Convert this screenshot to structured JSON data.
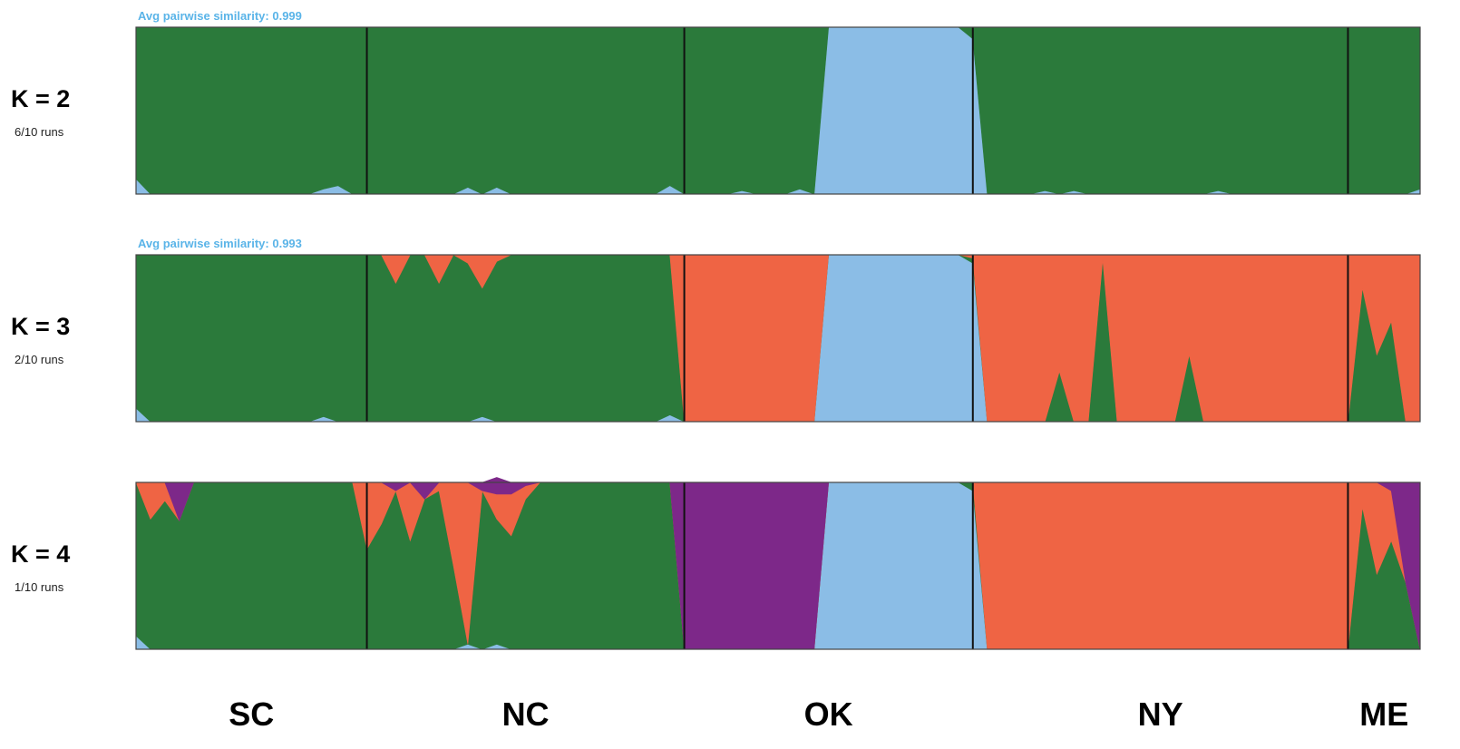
{
  "colors": {
    "green": "#2b7a3b",
    "blue": "#8bbde6",
    "orange": "#ef6444",
    "purple": "#7d2889",
    "similarity_text": "#5ab4e8",
    "frame": "#444444",
    "divider": "#111111"
  },
  "chart_data": {
    "type": "area",
    "description_kind": "stacked admixture proportions per individual",
    "populations": [
      "SC",
      "NC",
      "OK",
      "NY",
      "ME"
    ],
    "population_bounds_by_individual_index": [
      [
        0,
        16
      ],
      [
        16,
        38
      ],
      [
        38,
        58
      ],
      [
        58,
        84
      ],
      [
        84,
        89
      ]
    ],
    "x": [
      0,
      1,
      2,
      3,
      4,
      5,
      6,
      7,
      8,
      9,
      10,
      11,
      12,
      13,
      14,
      15,
      16,
      17,
      18,
      19,
      20,
      21,
      22,
      23,
      24,
      25,
      26,
      27,
      28,
      29,
      30,
      31,
      32,
      33,
      34,
      35,
      36,
      37,
      38,
      39,
      40,
      41,
      42,
      43,
      44,
      45,
      46,
      47,
      48,
      49,
      50,
      51,
      52,
      53,
      54,
      55,
      56,
      57,
      58,
      59,
      60,
      61,
      62,
      63,
      64,
      65,
      66,
      67,
      68,
      69,
      70,
      71,
      72,
      73,
      74,
      75,
      76,
      77,
      78,
      79,
      80,
      81,
      82,
      83,
      84,
      85,
      86,
      87,
      88,
      89
    ],
    "panels": [
      {
        "k_label": "K = 2",
        "runs_label": "6/10 runs",
        "similarity_label": "Avg pairwise similarity: 0.999",
        "series": [
          {
            "color_key": "blue",
            "values": [
              0.09,
              0.0,
              0.0,
              0.0,
              0.0,
              0.0,
              0.0,
              0.0,
              0.0,
              0.0,
              0.0,
              0.0,
              0.0,
              0.03,
              0.05,
              0.0,
              0.0,
              0.0,
              0.0,
              0.0,
              0.0,
              0.0,
              0.0,
              0.04,
              0.0,
              0.04,
              0.0,
              0.0,
              0.0,
              0.0,
              0.0,
              0.0,
              0.0,
              0.0,
              0.0,
              0.0,
              0.0,
              0.05,
              0.0,
              0.0,
              0.0,
              0.0,
              0.02,
              0.0,
              0.0,
              0.0,
              0.03,
              0.0,
              1.0,
              1.0,
              1.0,
              1.0,
              1.0,
              1.0,
              1.0,
              1.0,
              1.0,
              1.0,
              0.93,
              0.0,
              0.0,
              0.0,
              0.0,
              0.02,
              0.0,
              0.02,
              0.0,
              0.0,
              0.0,
              0.0,
              0.0,
              0.0,
              0.0,
              0.0,
              0.0,
              0.02,
              0.0,
              0.0,
              0.0,
              0.0,
              0.0,
              0.0,
              0.0,
              0.0,
              0.0,
              0.0,
              0.0,
              0.0,
              0.0,
              0.03
            ]
          },
          {
            "color_key": "green",
            "values": [
              0.91,
              1.0,
              1.0,
              1.0,
              1.0,
              1.0,
              1.0,
              1.0,
              1.0,
              1.0,
              1.0,
              1.0,
              1.0,
              0.97,
              0.95,
              1.0,
              1.0,
              1.0,
              1.0,
              1.0,
              1.0,
              1.0,
              1.0,
              0.96,
              1.0,
              0.96,
              1.0,
              1.0,
              1.0,
              1.0,
              1.0,
              1.0,
              1.0,
              1.0,
              1.0,
              1.0,
              1.0,
              0.95,
              1.0,
              1.0,
              1.0,
              1.0,
              0.98,
              1.0,
              1.0,
              1.0,
              0.97,
              1.0,
              0.0,
              0.0,
              0.0,
              0.0,
              0.0,
              0.0,
              0.0,
              0.0,
              0.0,
              0.0,
              0.07,
              1.0,
              1.0,
              1.0,
              1.0,
              0.98,
              1.0,
              0.98,
              1.0,
              1.0,
              1.0,
              1.0,
              1.0,
              1.0,
              1.0,
              1.0,
              1.0,
              0.98,
              1.0,
              1.0,
              1.0,
              1.0,
              1.0,
              1.0,
              1.0,
              1.0,
              1.0,
              1.0,
              1.0,
              1.0,
              1.0,
              0.97
            ]
          }
        ]
      },
      {
        "k_label": "K = 3",
        "runs_label": "2/10 runs",
        "similarity_label": "Avg pairwise similarity: 0.993",
        "series": [
          {
            "color_key": "blue",
            "values": [
              0.08,
              0.0,
              0.0,
              0.0,
              0.0,
              0.0,
              0.0,
              0.0,
              0.0,
              0.0,
              0.0,
              0.0,
              0.0,
              0.03,
              0.0,
              0.0,
              0.0,
              0.0,
              0.0,
              0.0,
              0.0,
              0.0,
              0.0,
              0.0,
              0.03,
              0.0,
              0.0,
              0.0,
              0.0,
              0.0,
              0.0,
              0.0,
              0.0,
              0.0,
              0.0,
              0.0,
              0.0,
              0.04,
              0.0,
              0.0,
              0.0,
              0.0,
              0.0,
              0.0,
              0.0,
              0.0,
              0.0,
              0.0,
              1.0,
              1.0,
              1.0,
              1.0,
              1.0,
              1.0,
              1.0,
              1.0,
              1.0,
              1.0,
              0.95,
              0.0,
              0.0,
              0.0,
              0.0,
              0.0,
              0.0,
              0.0,
              0.0,
              0.0,
              0.0,
              0.0,
              0.0,
              0.0,
              0.0,
              0.0,
              0.0,
              0.0,
              0.0,
              0.0,
              0.0,
              0.0,
              0.0,
              0.0,
              0.0,
              0.0,
              0.0,
              0.0,
              0.0,
              0.0,
              0.0,
              0.0
            ]
          },
          {
            "color_key": "green",
            "values": [
              0.92,
              1.0,
              1.0,
              1.0,
              1.0,
              1.0,
              1.0,
              1.0,
              1.0,
              1.0,
              1.0,
              1.0,
              1.0,
              0.97,
              1.0,
              1.0,
              1.0,
              1.0,
              0.83,
              1.0,
              1.0,
              0.83,
              1.0,
              0.95,
              0.77,
              0.96,
              1.0,
              1.0,
              1.0,
              1.0,
              1.0,
              1.0,
              1.0,
              1.0,
              1.0,
              1.0,
              1.0,
              0.96,
              0.0,
              0.0,
              0.0,
              0.0,
              0.0,
              0.0,
              0.0,
              0.0,
              0.0,
              0.0,
              0.0,
              0.0,
              0.0,
              0.0,
              0.0,
              0.0,
              0.0,
              0.0,
              0.0,
              0.0,
              0.03,
              0.0,
              0.0,
              0.0,
              0.0,
              0.0,
              0.3,
              0.0,
              0.0,
              0.97,
              0.0,
              0.0,
              0.0,
              0.0,
              0.0,
              0.4,
              0.0,
              0.0,
              0.0,
              0.0,
              0.0,
              0.0,
              0.0,
              0.0,
              0.0,
              0.0,
              0.0,
              0.8,
              0.4,
              0.6,
              0.0,
              0.0
            ]
          },
          {
            "color_key": "orange",
            "values": [
              0.0,
              0.0,
              0.0,
              0.0,
              0.0,
              0.0,
              0.0,
              0.0,
              0.0,
              0.0,
              0.0,
              0.0,
              0.0,
              0.0,
              0.0,
              0.0,
              0.0,
              0.0,
              0.17,
              0.0,
              0.0,
              0.17,
              0.0,
              0.05,
              0.2,
              0.04,
              0.0,
              0.0,
              0.0,
              0.0,
              0.0,
              0.0,
              0.0,
              0.0,
              0.0,
              0.0,
              0.0,
              0.0,
              1.0,
              1.0,
              1.0,
              1.0,
              1.0,
              1.0,
              1.0,
              1.0,
              1.0,
              1.0,
              0.0,
              0.0,
              0.0,
              0.0,
              0.0,
              0.0,
              0.0,
              0.0,
              0.0,
              0.0,
              0.02,
              1.0,
              1.0,
              1.0,
              1.0,
              1.0,
              0.7,
              1.0,
              1.0,
              0.03,
              1.0,
              1.0,
              1.0,
              1.0,
              1.0,
              0.6,
              1.0,
              1.0,
              1.0,
              1.0,
              1.0,
              1.0,
              1.0,
              1.0,
              1.0,
              1.0,
              1.0,
              0.2,
              0.6,
              0.4,
              1.0,
              1.0
            ]
          }
        ]
      },
      {
        "k_label": "K = 4",
        "runs_label": "1/10 runs",
        "similarity_label": "",
        "series": [
          {
            "color_key": "blue",
            "values": [
              0.08,
              0.0,
              0.0,
              0.0,
              0.0,
              0.0,
              0.0,
              0.0,
              0.0,
              0.0,
              0.0,
              0.0,
              0.0,
              0.0,
              0.0,
              0.0,
              0.0,
              0.0,
              0.0,
              0.0,
              0.0,
              0.0,
              0.0,
              0.03,
              0.0,
              0.03,
              0.0,
              0.0,
              0.0,
              0.0,
              0.0,
              0.0,
              0.0,
              0.0,
              0.0,
              0.0,
              0.0,
              0.0,
              0.0,
              0.0,
              0.0,
              0.0,
              0.0,
              0.0,
              0.0,
              0.0,
              0.0,
              0.0,
              1.0,
              1.0,
              1.0,
              1.0,
              1.0,
              1.0,
              1.0,
              1.0,
              1.0,
              1.0,
              0.95,
              0.0,
              0.0,
              0.0,
              0.0,
              0.0,
              0.0,
              0.0,
              0.0,
              0.0,
              0.0,
              0.0,
              0.0,
              0.0,
              0.0,
              0.0,
              0.0,
              0.0,
              0.0,
              0.0,
              0.0,
              0.0,
              0.0,
              0.0,
              0.0,
              0.0,
              0.0,
              0.0,
              0.0,
              0.0,
              0.0,
              0.0
            ]
          },
          {
            "color_key": "green",
            "values": [
              0.92,
              0.78,
              0.89,
              0.77,
              1.0,
              1.0,
              1.0,
              1.0,
              1.0,
              1.0,
              1.0,
              1.0,
              1.0,
              1.0,
              1.0,
              1.0,
              0.6,
              0.75,
              0.95,
              0.65,
              0.9,
              0.95,
              0.5,
              0.0,
              0.95,
              0.75,
              0.68,
              0.9,
              1.0,
              1.0,
              1.0,
              1.0,
              1.0,
              1.0,
              1.0,
              1.0,
              1.0,
              1.0,
              0.0,
              0.0,
              0.0,
              0.0,
              0.0,
              0.0,
              0.0,
              0.0,
              0.0,
              0.0,
              0.0,
              0.0,
              0.0,
              0.0,
              0.0,
              0.0,
              0.0,
              0.0,
              0.0,
              0.0,
              0.05,
              0.0,
              0.0,
              0.0,
              0.0,
              0.0,
              0.0,
              0.0,
              0.0,
              0.0,
              0.0,
              0.0,
              0.0,
              0.0,
              0.0,
              0.0,
              0.0,
              0.0,
              0.0,
              0.0,
              0.0,
              0.0,
              0.0,
              0.0,
              0.0,
              0.0,
              0.0,
              0.85,
              0.45,
              0.65,
              0.4,
              0.0
            ]
          },
          {
            "color_key": "orange",
            "values": [
              0.0,
              0.22,
              0.11,
              0.0,
              0.0,
              0.0,
              0.0,
              0.0,
              0.0,
              0.0,
              0.0,
              0.0,
              0.0,
              0.0,
              0.0,
              0.0,
              0.4,
              0.25,
              0.0,
              0.35,
              0.0,
              0.05,
              0.5,
              0.97,
              0.0,
              0.15,
              0.25,
              0.08,
              0.0,
              0.0,
              0.0,
              0.0,
              0.0,
              0.0,
              0.0,
              0.0,
              0.0,
              0.0,
              0.0,
              0.0,
              0.0,
              0.0,
              0.0,
              0.0,
              0.0,
              0.0,
              0.0,
              0.0,
              0.0,
              0.0,
              0.0,
              0.0,
              0.0,
              0.0,
              0.0,
              0.0,
              0.0,
              0.0,
              0.0,
              1.0,
              1.0,
              1.0,
              1.0,
              1.0,
              1.0,
              1.0,
              1.0,
              1.0,
              1.0,
              1.0,
              1.0,
              1.0,
              1.0,
              1.0,
              1.0,
              1.0,
              1.0,
              1.0,
              1.0,
              1.0,
              1.0,
              1.0,
              1.0,
              1.0,
              1.0,
              0.15,
              0.55,
              0.3,
              0.0,
              0.0
            ]
          },
          {
            "color_key": "purple",
            "values": [
              0.0,
              0.0,
              0.0,
              0.23,
              0.0,
              0.0,
              0.0,
              0.0,
              0.0,
              0.0,
              0.0,
              0.0,
              0.0,
              0.0,
              0.0,
              0.0,
              0.0,
              0.0,
              0.05,
              0.0,
              0.1,
              0.0,
              0.0,
              0.0,
              0.05,
              0.1,
              0.07,
              0.02,
              0.0,
              0.0,
              0.0,
              0.0,
              0.0,
              0.0,
              0.0,
              0.0,
              0.0,
              0.0,
              1.0,
              1.0,
              1.0,
              1.0,
              1.0,
              1.0,
              1.0,
              1.0,
              1.0,
              1.0,
              0.0,
              0.0,
              0.0,
              0.0,
              0.0,
              0.0,
              0.0,
              0.0,
              0.0,
              0.0,
              0.0,
              0.0,
              0.0,
              0.0,
              0.0,
              0.0,
              0.0,
              0.0,
              0.0,
              0.0,
              0.0,
              0.0,
              0.0,
              0.0,
              0.0,
              0.0,
              0.0,
              0.0,
              0.0,
              0.0,
              0.0,
              0.0,
              0.0,
              0.0,
              0.0,
              0.0,
              0.0,
              0.0,
              0.0,
              0.05,
              0.6,
              1.0
            ]
          }
        ]
      }
    ]
  }
}
